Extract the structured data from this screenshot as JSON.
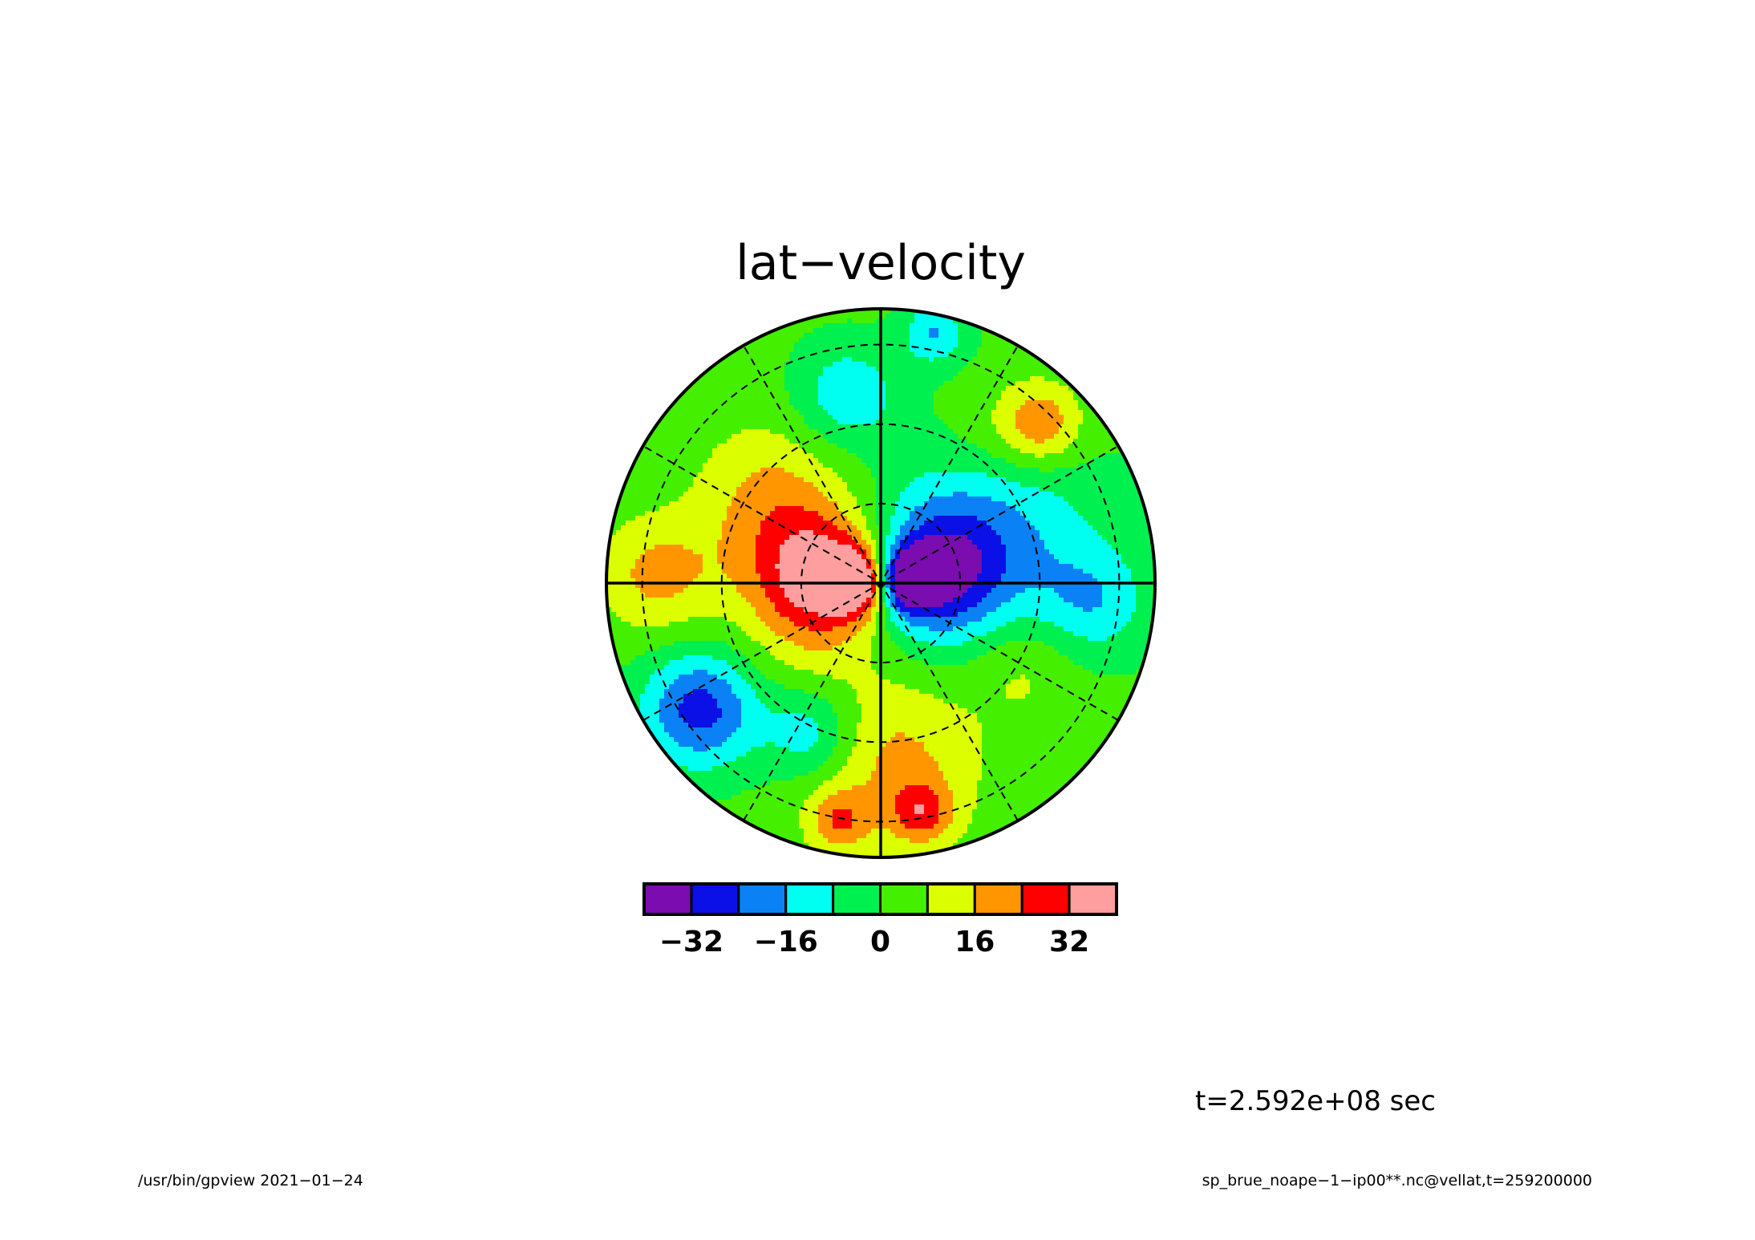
{
  "chart_data": {
    "type": "heatmap",
    "projection": "polar-stereographic",
    "title": "lat−velocity",
    "colorbar": {
      "orientation": "horizontal",
      "tick_labels": [
        "−32",
        "−16",
        "0",
        "16",
        "32"
      ],
      "tick_values": [
        -32,
        -16,
        0,
        16,
        32
      ],
      "levels": [
        -40,
        -32,
        -24,
        -16,
        -8,
        0,
        8,
        16,
        24,
        32,
        40
      ],
      "colors": [
        "#7a0cb0",
        "#0a10e6",
        "#0a82f5",
        "#00fff0",
        "#00f050",
        "#44f000",
        "#dcff00",
        "#ff9600",
        "#ff0000",
        "#ff9e9e"
      ]
    },
    "grid": {
      "lat_circles": 3,
      "meridian_spacing_deg": 30,
      "style": "dashed"
    },
    "field_features": [
      {
        "lat_frac": 0.06,
        "lon_deg": 172,
        "value": 40,
        "spread": 0.08
      },
      {
        "lat_frac": 0.2,
        "lon_deg": 175,
        "value": 30,
        "spread": 0.16
      },
      {
        "lat_frac": 0.35,
        "lon_deg": 160,
        "value": 12,
        "spread": 0.22
      },
      {
        "lat_frac": 0.07,
        "lon_deg": 8,
        "value": -38,
        "spread": 0.08
      },
      {
        "lat_frac": 0.2,
        "lon_deg": 10,
        "value": -28,
        "spread": 0.16
      },
      {
        "lat_frac": 0.42,
        "lon_deg": 22,
        "value": -20,
        "spread": 0.28
      },
      {
        "lat_frac": 0.78,
        "lon_deg": -5,
        "value": -14,
        "spread": 0.14
      },
      {
        "lat_frac": 0.8,
        "lon_deg": 215,
        "value": -30,
        "spread": 0.15
      },
      {
        "lat_frac": 0.6,
        "lon_deg": 245,
        "value": -18,
        "spread": 0.12
      },
      {
        "lat_frac": 0.7,
        "lon_deg": 100,
        "value": -16,
        "spread": 0.13
      },
      {
        "lat_frac": 0.93,
        "lon_deg": 78,
        "value": -18,
        "spread": 0.08
      },
      {
        "lat_frac": 0.82,
        "lon_deg": 45,
        "value": 22,
        "spread": 0.11
      },
      {
        "lat_frac": 0.65,
        "lon_deg": 275,
        "value": 16,
        "spread": 0.22
      },
      {
        "lat_frac": 0.85,
        "lon_deg": 280,
        "value": 20,
        "spread": 0.08
      },
      {
        "lat_frac": 0.88,
        "lon_deg": 260,
        "value": 18,
        "spread": 0.08
      },
      {
        "lat_frac": 0.82,
        "lon_deg": 178,
        "value": 16,
        "spread": 0.15
      },
      {
        "lat_frac": 0.55,
        "lon_deg": 140,
        "value": 10,
        "spread": 0.18
      },
      {
        "lat_frac": 0.6,
        "lon_deg": 330,
        "value": 10,
        "spread": 0.15
      },
      {
        "lat_frac": 0.65,
        "lon_deg": 55,
        "value": 6,
        "spread": 0.15
      },
      {
        "lat_frac": 0.4,
        "lon_deg": 225,
        "value": 4,
        "spread": 0.2
      }
    ],
    "field_background": 2
  },
  "annotation": {
    "time": "t=2.592e+08 sec"
  },
  "footer": {
    "program": "/usr/bin/gpview  2021−01−24",
    "source": "sp_brue_noape−1−ip00**.nc@vellat,t=259200000"
  }
}
